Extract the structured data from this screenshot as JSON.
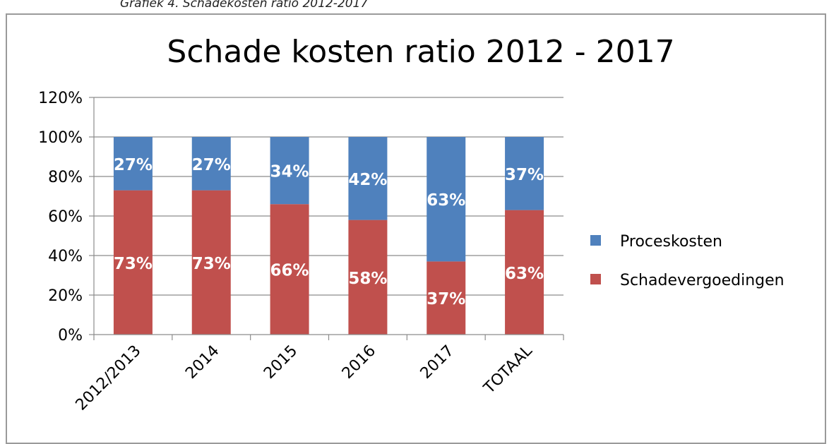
{
  "caption": "Grafiek 4. Schadekosten ratio 2012-2017",
  "colors": {
    "proceskosten": "#4f81bd",
    "schadevergoedingen": "#c0504d",
    "grid": "#8c8c8c"
  },
  "chart_data": {
    "type": "bar",
    "stacked": true,
    "title": "Schade kosten ratio 2012 - 2017",
    "xlabel": "",
    "ylabel": "",
    "categories": [
      "2012/2013",
      "2014",
      "2015",
      "2016",
      "2017",
      "TOTAAL"
    ],
    "series": [
      {
        "name": "Schadevergoedingen",
        "values": [
          73,
          73,
          66,
          58,
          37,
          63
        ],
        "labels": [
          "73%",
          "73%",
          "66%",
          "58%",
          "37%",
          "63%"
        ]
      },
      {
        "name": "Proceskosten",
        "values": [
          27,
          27,
          34,
          42,
          63,
          37
        ],
        "labels": [
          "27%",
          "27%",
          "34%",
          "42%",
          "63%",
          "37%"
        ]
      }
    ],
    "ylim": [
      0,
      120
    ],
    "yticks": [
      "0%",
      "20%",
      "40%",
      "60%",
      "80%",
      "100%",
      "120%"
    ],
    "grid": true,
    "legend": [
      "Proceskosten",
      "Schadevergoedingen"
    ],
    "legend_position": "right"
  }
}
